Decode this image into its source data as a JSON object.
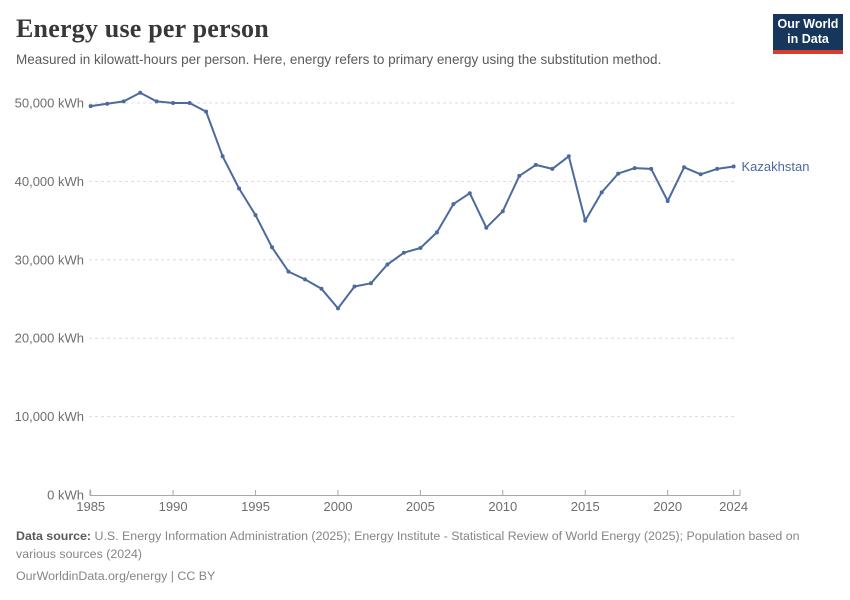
{
  "header": {
    "title": "Energy use per person",
    "subtitle": "Measured in kilowatt-hours per person. Here, energy refers to primary energy using the substitution method.",
    "logo_line1": "Our World",
    "logo_line2": "in Data"
  },
  "colors": {
    "series_line": "#4C6A9C",
    "logo_navy": "#16365c",
    "logo_red": "#d73c2c",
    "gridline": "#dcdcdc",
    "axis_line": "#a8a8a8",
    "tick_label": "#6e6e6e",
    "title_text": "#383838",
    "subtitle_text": "#5b5b5b",
    "footer_text": "#858585"
  },
  "chart_data": {
    "type": "line",
    "title": "Energy use per person",
    "xlabel": "",
    "ylabel": "kilowatt-hours per person",
    "unit": "kWh",
    "grid": "horizontal-dashed",
    "legend": "end-of-line-label",
    "xlim": [
      1985,
      2024
    ],
    "ylim": [
      0,
      52000
    ],
    "x": [
      1985,
      1986,
      1987,
      1988,
      1989,
      1990,
      1991,
      1992,
      1993,
      1994,
      1995,
      1996,
      1997,
      1998,
      1999,
      2000,
      2001,
      2002,
      2003,
      2004,
      2005,
      2006,
      2007,
      2008,
      2009,
      2010,
      2011,
      2012,
      2013,
      2014,
      2015,
      2016,
      2017,
      2018,
      2019,
      2020,
      2021,
      2022,
      2023,
      2024
    ],
    "series": [
      {
        "name": "Kazakhstan",
        "color": "#4C6A9C",
        "values": [
          49600,
          49900,
          50200,
          51300,
          50200,
          50000,
          50000,
          48900,
          43200,
          39100,
          35700,
          31600,
          28500,
          27500,
          26300,
          23800,
          26600,
          27000,
          29400,
          30900,
          31500,
          33500,
          37100,
          38500,
          34100,
          36200,
          40700,
          42100,
          41600,
          43200,
          35000,
          38600,
          41000,
          41700,
          41600,
          37500,
          41800,
          40900,
          41600,
          41900
        ]
      }
    ],
    "y_axis": {
      "ticks": [
        {
          "value": 0,
          "label": "0 kWh"
        },
        {
          "value": 10000,
          "label": "10,000 kWh"
        },
        {
          "value": 20000,
          "label": "20,000 kWh"
        },
        {
          "value": 30000,
          "label": "30,000 kWh"
        },
        {
          "value": 40000,
          "label": "40,000 kWh"
        },
        {
          "value": 50000,
          "label": "50,000 kWh"
        }
      ]
    },
    "x_axis": {
      "ticks": [
        {
          "value": 1985,
          "label": "1985"
        },
        {
          "value": 1990,
          "label": "1990"
        },
        {
          "value": 1995,
          "label": "1995"
        },
        {
          "value": 2000,
          "label": "2000"
        },
        {
          "value": 2005,
          "label": "2005"
        },
        {
          "value": 2010,
          "label": "2010"
        },
        {
          "value": 2015,
          "label": "2015"
        },
        {
          "value": 2020,
          "label": "2020"
        },
        {
          "value": 2024,
          "label": "2024"
        }
      ]
    },
    "end_label": "Kazakhstan"
  },
  "footer": {
    "source_label": "Data source:",
    "source_text": " U.S. Energy Information Administration (2025); Energy Institute - Statistical Review of World Energy (2025); Population based on various sources (2024)",
    "link_line": "OurWorldinData.org/energy | CC BY"
  }
}
